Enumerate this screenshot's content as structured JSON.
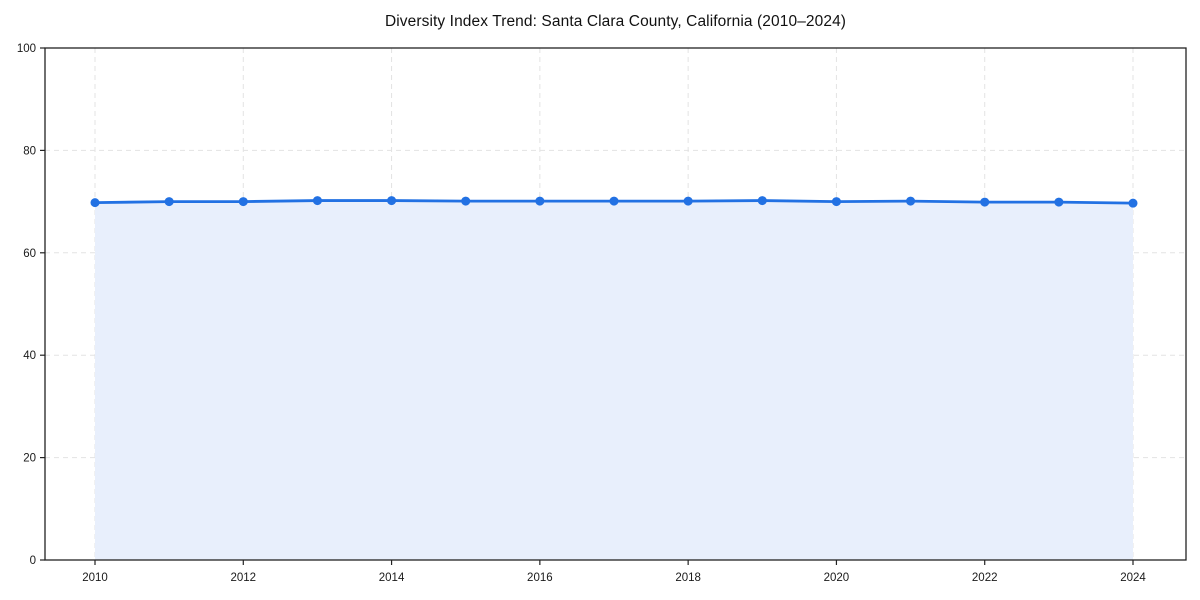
{
  "chart_data": {
    "type": "area",
    "title": "Diversity Index Trend: Santa Clara County, California (2010–2024)",
    "xlabel": "",
    "ylabel": "",
    "x": [
      2010,
      2011,
      2012,
      2013,
      2014,
      2015,
      2016,
      2017,
      2018,
      2019,
      2020,
      2021,
      2022,
      2023,
      2024
    ],
    "series": [
      {
        "name": "Diversity Index",
        "values": [
          69.8,
          70.0,
          70.0,
          70.2,
          70.2,
          70.1,
          70.1,
          70.1,
          70.1,
          70.2,
          70.0,
          70.1,
          69.9,
          69.9,
          69.7
        ]
      }
    ],
    "ylim": [
      0,
      100
    ],
    "yticks": [
      0,
      20,
      40,
      60,
      80,
      100
    ],
    "xticks": [
      2010,
      2012,
      2014,
      2016,
      2018,
      2020,
      2022,
      2024
    ],
    "grid": true,
    "legend": "none",
    "colors": {
      "line": "#2271e3",
      "marker": "#2271e3",
      "fill": "#e8effc",
      "grid": "#e3e3e3",
      "axis": "#222222",
      "tick_text": "#1a1a1a",
      "background": "#ffffff"
    }
  }
}
